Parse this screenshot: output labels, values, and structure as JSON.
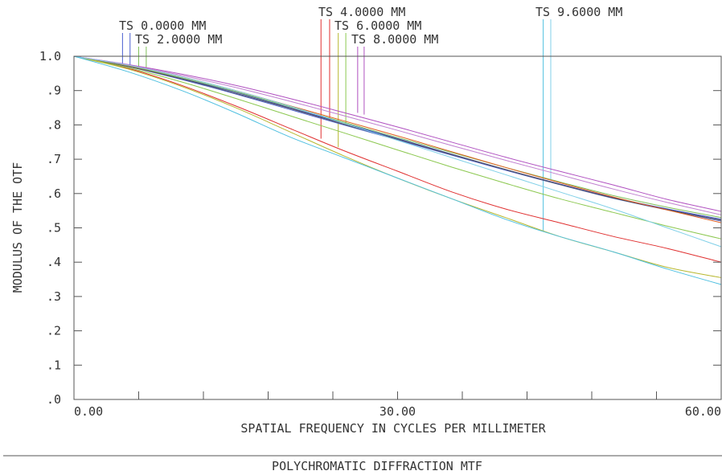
{
  "chart_data": {
    "type": "line",
    "title": "POLYCHROMATIC DIFFRACTION MTF",
    "xlabel": "SPATIAL FREQUENCY IN CYCLES PER MILLIMETER",
    "ylabel": "MODULUS OF THE OTF",
    "xlim": [
      0,
      60
    ],
    "ylim": [
      0,
      1
    ],
    "x_ticks": [
      0,
      6,
      12,
      18,
      24,
      30,
      36,
      42,
      48,
      54,
      60
    ],
    "x_tick_labels": [
      {
        "x": 0,
        "label": "0.00"
      },
      {
        "x": 30,
        "label": "30.00"
      },
      {
        "x": 60,
        "label": "60.00"
      }
    ],
    "y_ticks": [
      {
        "y": 0.0,
        "label": ".0"
      },
      {
        "y": 0.1,
        "label": ".1"
      },
      {
        "y": 0.2,
        "label": ".2"
      },
      {
        "y": 0.3,
        "label": ".3"
      },
      {
        "y": 0.4,
        "label": ".4"
      },
      {
        "y": 0.5,
        "label": ".5"
      },
      {
        "y": 0.6,
        "label": ".6"
      },
      {
        "y": 0.7,
        "label": ".7"
      },
      {
        "y": 0.8,
        "label": ".8"
      },
      {
        "y": 0.9,
        "label": ".9"
      },
      {
        "y": 1.0,
        "label": "1.0"
      }
    ],
    "grid": false,
    "field_labels": [
      {
        "text": "TS 0.0000 MM",
        "leaders": [
          {
            "color": "#4a5fd0",
            "x": 4.5,
            "y": 0.975
          },
          {
            "color": "#4a5fd0",
            "x": 5.2,
            "y": 0.972
          }
        ]
      },
      {
        "text": "TS 2.0000 MM",
        "leaders": [
          {
            "color": "#7fbf5a",
            "x": 6.0,
            "y": 0.968
          },
          {
            "color": "#7fbf5a",
            "x": 6.7,
            "y": 0.965
          }
        ]
      },
      {
        "text": "TS 4.0000 MM",
        "leaders": [
          {
            "color": "#e03030",
            "x": 22.9,
            "y": 0.76
          },
          {
            "color": "#e03030",
            "x": 23.7,
            "y": 0.815
          }
        ]
      },
      {
        "text": "TS 6.0000 MM",
        "leaders": [
          {
            "color": "#b8b830",
            "x": 24.5,
            "y": 0.735
          },
          {
            "color": "#8cc850",
            "x": 25.2,
            "y": 0.8
          }
        ]
      },
      {
        "text": "TS 8.0000 MM",
        "leaders": [
          {
            "color": "#b050c0",
            "x": 26.3,
            "y": 0.835
          },
          {
            "color": "#b050c0",
            "x": 26.9,
            "y": 0.83
          }
        ]
      },
      {
        "text": "TS 9.6000 MM",
        "leaders": [
          {
            "color": "#50c0e0",
            "x": 43.5,
            "y": 0.49
          },
          {
            "color": "#80d0e8",
            "x": 44.2,
            "y": 0.64
          }
        ]
      }
    ],
    "series": [
      {
        "color": "#2b3fbf",
        "x": [
          0,
          5,
          10,
          15,
          20,
          25,
          30,
          35,
          40,
          45,
          50,
          55,
          60
        ],
        "y": [
          1,
          0.972,
          0.935,
          0.895,
          0.85,
          0.805,
          0.76,
          0.715,
          0.67,
          0.628,
          0.588,
          0.555,
          0.525
        ]
      },
      {
        "color": "#4a5fd0",
        "x": [
          0,
          5,
          10,
          15,
          20,
          25,
          30,
          35,
          40,
          45,
          50,
          55,
          60
        ],
        "y": [
          1,
          0.97,
          0.932,
          0.89,
          0.845,
          0.8,
          0.756,
          0.712,
          0.668,
          0.626,
          0.586,
          0.552,
          0.52
        ]
      },
      {
        "color": "#7fbf5a",
        "x": [
          0,
          5,
          10,
          15,
          20,
          25,
          30,
          35,
          40,
          45,
          50,
          55,
          60
        ],
        "y": [
          1,
          0.972,
          0.937,
          0.897,
          0.853,
          0.808,
          0.763,
          0.72,
          0.676,
          0.634,
          0.594,
          0.56,
          0.53
        ]
      },
      {
        "color": "#555555",
        "x": [
          0,
          5,
          10,
          15,
          20,
          25,
          30,
          35,
          40,
          45,
          50,
          55,
          60
        ],
        "y": [
          1,
          0.97,
          0.934,
          0.892,
          0.848,
          0.802,
          0.758,
          0.714,
          0.67,
          0.627,
          0.587,
          0.553,
          0.522
        ]
      },
      {
        "color": "#e06020",
        "x": [
          0,
          5,
          10,
          15,
          20,
          25,
          30,
          35,
          40,
          45,
          50,
          55,
          60
        ],
        "y": [
          1,
          0.973,
          0.94,
          0.9,
          0.856,
          0.812,
          0.768,
          0.722,
          0.676,
          0.632,
          0.59,
          0.552,
          0.515
        ]
      },
      {
        "color": "#e03030",
        "x": [
          0,
          5,
          10,
          15,
          20,
          25,
          30,
          35,
          40,
          45,
          50,
          55,
          60
        ],
        "y": [
          1,
          0.965,
          0.915,
          0.855,
          0.79,
          0.725,
          0.665,
          0.605,
          0.555,
          0.515,
          0.475,
          0.44,
          0.4
        ]
      },
      {
        "color": "#8cc850",
        "x": [
          0,
          5,
          10,
          15,
          20,
          25,
          30,
          35,
          40,
          45,
          50,
          55,
          60
        ],
        "y": [
          1,
          0.967,
          0.925,
          0.877,
          0.827,
          0.777,
          0.727,
          0.677,
          0.63,
          0.585,
          0.545,
          0.505,
          0.468
        ]
      },
      {
        "color": "#b8b830",
        "x": [
          0,
          5,
          10,
          15,
          20,
          25,
          30,
          35,
          40,
          45,
          50,
          55,
          60
        ],
        "y": [
          1,
          0.963,
          0.912,
          0.85,
          0.78,
          0.71,
          0.645,
          0.585,
          0.53,
          0.475,
          0.43,
          0.385,
          0.355
        ]
      },
      {
        "color": "#b050c0",
        "x": [
          0,
          5,
          10,
          15,
          20,
          25,
          30,
          35,
          40,
          45,
          50,
          55,
          60
        ],
        "y": [
          1,
          0.976,
          0.948,
          0.915,
          0.877,
          0.836,
          0.794,
          0.75,
          0.706,
          0.665,
          0.625,
          0.583,
          0.548
        ]
      },
      {
        "color": "#c080d0",
        "x": [
          0,
          5,
          10,
          15,
          20,
          25,
          30,
          35,
          40,
          45,
          50,
          55,
          60
        ],
        "y": [
          1,
          0.975,
          0.944,
          0.909,
          0.869,
          0.827,
          0.784,
          0.74,
          0.697,
          0.655,
          0.613,
          0.574,
          0.538
        ]
      },
      {
        "color": "#80d0e8",
        "x": [
          0,
          5,
          10,
          15,
          20,
          25,
          30,
          35,
          40,
          45,
          50,
          55,
          60
        ],
        "y": [
          1,
          0.974,
          0.94,
          0.9,
          0.855,
          0.805,
          0.755,
          0.705,
          0.655,
          0.605,
          0.555,
          0.5,
          0.445
        ]
      },
      {
        "color": "#50c0e0",
        "x": [
          0,
          5,
          10,
          15,
          20,
          25,
          30,
          35,
          40,
          45,
          50,
          55,
          60
        ],
        "y": [
          1,
          0.955,
          0.9,
          0.835,
          0.765,
          0.705,
          0.645,
          0.585,
          0.525,
          0.475,
          0.43,
          0.38,
          0.335
        ]
      }
    ]
  }
}
